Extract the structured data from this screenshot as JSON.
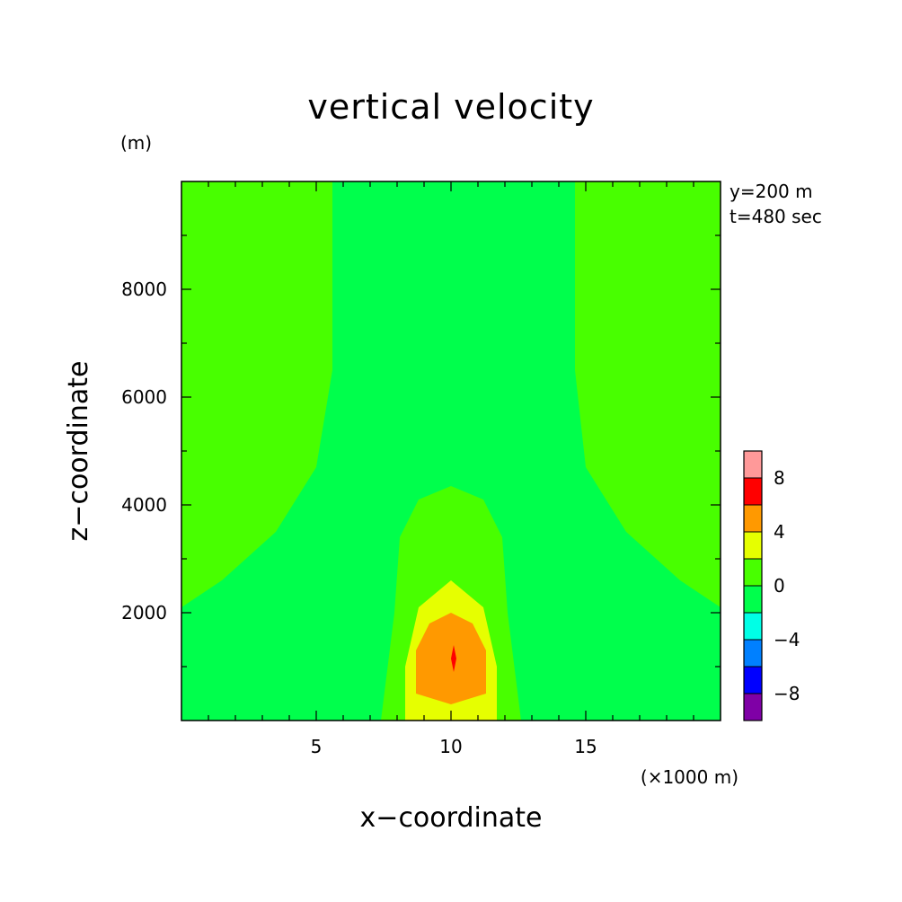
{
  "chart_data": {
    "type": "heatmap",
    "title": "vertical velocity",
    "xlabel": "x−coordinate",
    "ylabel": "z−coordinate",
    "x_unit": "(×1000 m)",
    "y_unit": "(m)",
    "annotations": [
      "y=200 m",
      "t=480 sec"
    ],
    "xlim": [
      0,
      20
    ],
    "ylim": [
      0,
      10000
    ],
    "x_ticks": [
      5,
      10,
      15
    ],
    "x_tick_labels": [
      "5",
      "10",
      "15"
    ],
    "y_ticks": [
      2000,
      4000,
      6000,
      8000
    ],
    "y_tick_labels": [
      "2000",
      "4000",
      "6000",
      "8000"
    ],
    "grid": false,
    "legend": "colorbar-right",
    "colorbar": {
      "levels": [
        -10,
        -8,
        -6,
        -4,
        -2,
        0,
        2,
        4,
        6,
        8,
        10
      ],
      "colors": [
        "#7f00a6",
        "#0000ff",
        "#0080ff",
        "#00ffe6",
        "#00ff4c",
        "#48ff00",
        "#e6ff00",
        "#ff9900",
        "#ff0000",
        "#ff9999"
      ],
      "tick_values": [
        -8,
        -4,
        0,
        4,
        8
      ],
      "tick_labels": [
        "−8",
        "−4",
        "0",
        "4",
        "8"
      ]
    },
    "regions": [
      {
        "range": [
          -2,
          0
        ],
        "color": "#00ff4c",
        "outline": [
          [
            0,
            0
          ],
          [
            20,
            0
          ],
          [
            20,
            10000
          ],
          [
            0,
            10000
          ]
        ]
      },
      {
        "range": [
          0,
          2
        ],
        "color": "#48ff00",
        "outline": [
          [
            0,
            2100
          ],
          [
            1.5,
            2600
          ],
          [
            3.5,
            3500
          ],
          [
            5,
            4700
          ],
          [
            5.6,
            6500
          ],
          [
            5.6,
            10000
          ],
          [
            0,
            10000
          ]
        ]
      },
      {
        "range": [
          0,
          2
        ],
        "color": "#48ff00",
        "outline": [
          [
            20,
            2100
          ],
          [
            18.5,
            2600
          ],
          [
            16.5,
            3500
          ],
          [
            15,
            4700
          ],
          [
            14.6,
            6500
          ],
          [
            14.6,
            10000
          ],
          [
            20,
            10000
          ]
        ]
      },
      {
        "range": [
          0,
          2
        ],
        "color": "#48ff00",
        "outline": [
          [
            7.4,
            0
          ],
          [
            7.9,
            2000
          ],
          [
            8.1,
            3400
          ],
          [
            8.8,
            4100
          ],
          [
            10,
            4350
          ],
          [
            11.2,
            4100
          ],
          [
            11.9,
            3400
          ],
          [
            12.1,
            2000
          ],
          [
            12.6,
            0
          ]
        ]
      },
      {
        "range": [
          2,
          4
        ],
        "color": "#e6ff00",
        "outline": [
          [
            8.3,
            0
          ],
          [
            8.3,
            1000
          ],
          [
            8.8,
            2100
          ],
          [
            10,
            2600
          ],
          [
            11.2,
            2100
          ],
          [
            11.7,
            1000
          ],
          [
            11.7,
            0
          ]
        ]
      },
      {
        "range": [
          4,
          6
        ],
        "color": "#ff9900",
        "outline": [
          [
            8.7,
            500
          ],
          [
            8.7,
            1300
          ],
          [
            9.2,
            1800
          ],
          [
            10,
            2000
          ],
          [
            10.8,
            1800
          ],
          [
            11.3,
            1300
          ],
          [
            11.3,
            500
          ],
          [
            10,
            300
          ]
        ]
      },
      {
        "range": [
          6,
          8
        ],
        "color": "#ff0000",
        "outline": [
          [
            10.1,
            900
          ],
          [
            10,
            1150
          ],
          [
            10.1,
            1400
          ],
          [
            10.2,
            1150
          ]
        ]
      }
    ]
  }
}
